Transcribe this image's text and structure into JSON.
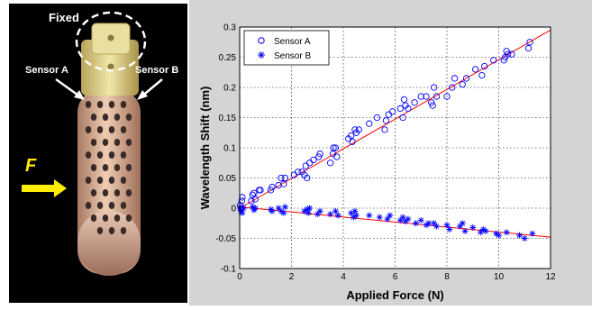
{
  "photo": {
    "fixed_label": "Fixed",
    "sensor_a_label": "Sensor A",
    "sensor_b_label": "Sensor B",
    "force_label": "F",
    "colors": {
      "label": "#ffffff",
      "force_arrow": "#ffee00",
      "dashed_circle": "#ffffff"
    }
  },
  "chart_data": {
    "type": "scatter",
    "title": "",
    "xlabel": "Applied Force (N)",
    "ylabel": "Wavelength Shift (nm)",
    "xlim": [
      0,
      12
    ],
    "ylim": [
      -0.1,
      0.3
    ],
    "xticks": [
      "0",
      "2",
      "4",
      "6",
      "8",
      "10",
      "12"
    ],
    "yticks": [
      "-0.1",
      "-0.05",
      "0",
      "0.05",
      "0.1",
      "0.15",
      "0.2",
      "0.25",
      "0.3"
    ],
    "grid": true,
    "legend_position": "top-left",
    "series": [
      {
        "name": "Sensor A",
        "marker": "circle",
        "color": "#0000ff",
        "points": [
          [
            0.02,
            0.005
          ],
          [
            0.05,
            0.0
          ],
          [
            0.08,
            0.012
          ],
          [
            0.1,
            0.018
          ],
          [
            0.45,
            0.012
          ],
          [
            0.5,
            0.022
          ],
          [
            0.55,
            0.025
          ],
          [
            0.6,
            0.015
          ],
          [
            0.75,
            0.03
          ],
          [
            0.8,
            0.03
          ],
          [
            1.2,
            0.03
          ],
          [
            1.25,
            0.035
          ],
          [
            1.5,
            0.038
          ],
          [
            1.6,
            0.05
          ],
          [
            1.7,
            0.04
          ],
          [
            1.75,
            0.05
          ],
          [
            2.1,
            0.055
          ],
          [
            2.25,
            0.06
          ],
          [
            2.4,
            0.06
          ],
          [
            2.5,
            0.055
          ],
          [
            2.55,
            0.07
          ],
          [
            2.6,
            0.05
          ],
          [
            2.7,
            0.075
          ],
          [
            2.85,
            0.08
          ],
          [
            3.05,
            0.085
          ],
          [
            3.1,
            0.09
          ],
          [
            3.5,
            0.075
          ],
          [
            3.6,
            0.09
          ],
          [
            3.62,
            0.1
          ],
          [
            3.7,
            0.1
          ],
          [
            3.75,
            0.085
          ],
          [
            4.2,
            0.115
          ],
          [
            4.3,
            0.12
          ],
          [
            4.35,
            0.11
          ],
          [
            4.45,
            0.13
          ],
          [
            4.5,
            0.125
          ],
          [
            4.6,
            0.13
          ],
          [
            5.0,
            0.14
          ],
          [
            5.3,
            0.15
          ],
          [
            5.6,
            0.13
          ],
          [
            5.65,
            0.145
          ],
          [
            5.75,
            0.155
          ],
          [
            5.9,
            0.16
          ],
          [
            6.2,
            0.165
          ],
          [
            6.3,
            0.15
          ],
          [
            6.35,
            0.18
          ],
          [
            6.4,
            0.17
          ],
          [
            6.5,
            0.165
          ],
          [
            6.75,
            0.175
          ],
          [
            7.0,
            0.185
          ],
          [
            7.2,
            0.185
          ],
          [
            7.4,
            0.175
          ],
          [
            7.45,
            0.17
          ],
          [
            7.5,
            0.2
          ],
          [
            7.6,
            0.185
          ],
          [
            8.0,
            0.185
          ],
          [
            8.2,
            0.2
          ],
          [
            8.3,
            0.215
          ],
          [
            8.6,
            0.205
          ],
          [
            8.75,
            0.215
          ],
          [
            9.1,
            0.23
          ],
          [
            9.35,
            0.22
          ],
          [
            9.45,
            0.235
          ],
          [
            9.8,
            0.245
          ],
          [
            10.2,
            0.245
          ],
          [
            10.25,
            0.25
          ],
          [
            10.3,
            0.26
          ],
          [
            10.35,
            0.255
          ],
          [
            10.5,
            0.255
          ],
          [
            11.15,
            0.265
          ],
          [
            11.2,
            0.275
          ]
        ],
        "fit": [
          [
            0,
            0.0
          ],
          [
            12,
            0.295
          ]
        ]
      },
      {
        "name": "Sensor B",
        "marker": "star",
        "color": "#0000ff",
        "points": [
          [
            0.02,
            0.0
          ],
          [
            0.05,
            -0.005
          ],
          [
            0.1,
            -0.008
          ],
          [
            0.15,
            0.0
          ],
          [
            0.5,
            0.002
          ],
          [
            0.55,
            -0.003
          ],
          [
            0.6,
            0.0
          ],
          [
            1.2,
            -0.002
          ],
          [
            1.25,
            -0.005
          ],
          [
            1.5,
            0.0
          ],
          [
            1.6,
            -0.005
          ],
          [
            1.7,
            -0.008
          ],
          [
            1.75,
            0.002
          ],
          [
            2.5,
            -0.005
          ],
          [
            2.6,
            -0.002
          ],
          [
            2.65,
            -0.008
          ],
          [
            2.7,
            0.0
          ],
          [
            3.0,
            -0.01
          ],
          [
            3.1,
            -0.005
          ],
          [
            3.5,
            -0.01
          ],
          [
            3.7,
            -0.005
          ],
          [
            3.8,
            -0.012
          ],
          [
            4.3,
            -0.008
          ],
          [
            4.4,
            -0.015
          ],
          [
            4.45,
            -0.005
          ],
          [
            4.5,
            -0.012
          ],
          [
            5.0,
            -0.012
          ],
          [
            5.4,
            -0.015
          ],
          [
            5.7,
            -0.018
          ],
          [
            5.8,
            -0.012
          ],
          [
            6.2,
            -0.02
          ],
          [
            6.3,
            -0.015
          ],
          [
            6.4,
            -0.022
          ],
          [
            6.5,
            -0.018
          ],
          [
            6.8,
            -0.025
          ],
          [
            7.0,
            -0.02
          ],
          [
            7.2,
            -0.028
          ],
          [
            7.3,
            -0.025
          ],
          [
            7.5,
            -0.025
          ],
          [
            7.6,
            -0.03
          ],
          [
            8.0,
            -0.028
          ],
          [
            8.1,
            -0.035
          ],
          [
            8.5,
            -0.03
          ],
          [
            8.6,
            -0.025
          ],
          [
            8.7,
            -0.038
          ],
          [
            9.0,
            -0.032
          ],
          [
            9.3,
            -0.04
          ],
          [
            9.4,
            -0.035
          ],
          [
            9.5,
            -0.038
          ],
          [
            9.9,
            -0.042
          ],
          [
            10.0,
            -0.045
          ],
          [
            10.3,
            -0.04
          ],
          [
            10.8,
            -0.045
          ],
          [
            11.0,
            -0.05
          ],
          [
            11.3,
            -0.042
          ]
        ],
        "fit": [
          [
            0,
            0.002
          ],
          [
            12,
            -0.048
          ]
        ]
      }
    ],
    "fit_color": "#ff0000"
  }
}
